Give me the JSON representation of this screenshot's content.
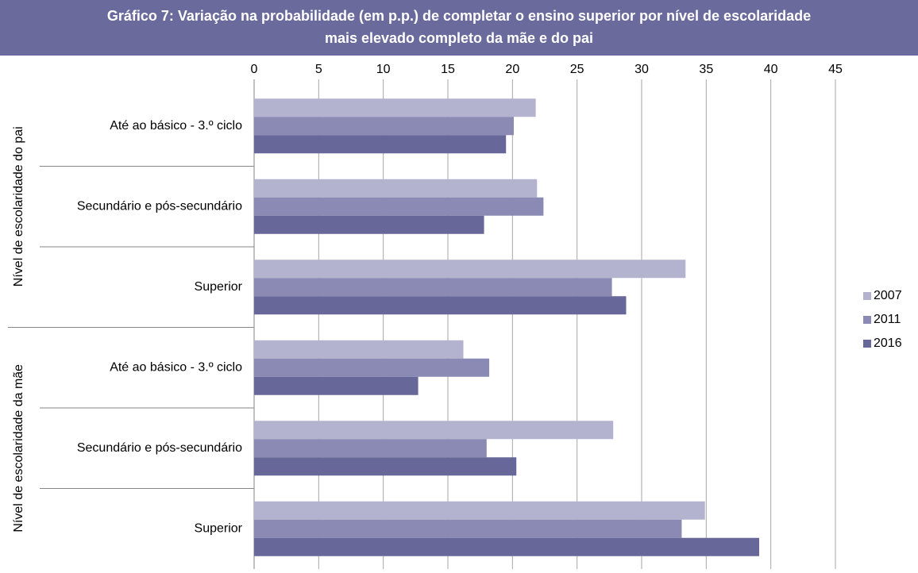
{
  "chart_data": {
    "type": "hbar",
    "title": "Gráfico 7: Variação na probabilidade (em p.p.) de completar o ensino superior por nível de escolaridade",
    "subtitle": "mais elevado completo da mãe e do pai",
    "groups": [
      "Nível de escolaridade do pai",
      "Nível de escolaridade da mãe"
    ],
    "categories": [
      "Até ao básico - 3.º ciclo",
      "Secundário e pós-secundário",
      "Superior",
      "Até ao básico - 3.º ciclo",
      "Secundário e pós-secundário",
      "Superior"
    ],
    "series": [
      {
        "name": "2007",
        "color": "#b3b3d0",
        "values": [
          21.8,
          21.9,
          33.4,
          16.2,
          27.8,
          34.9
        ]
      },
      {
        "name": "2011",
        "color": "#8a8ab4",
        "values": [
          20.1,
          22.4,
          27.7,
          18.2,
          18.0,
          33.1
        ]
      },
      {
        "name": "2016",
        "color": "#67679a",
        "values": [
          19.5,
          17.8,
          28.8,
          12.7,
          20.3,
          39.1
        ]
      }
    ],
    "xlim": [
      0,
      45
    ],
    "xticks": [
      0,
      5,
      10,
      15,
      20,
      25,
      30,
      35,
      40,
      45
    ],
    "grid": true,
    "legend": "right"
  }
}
